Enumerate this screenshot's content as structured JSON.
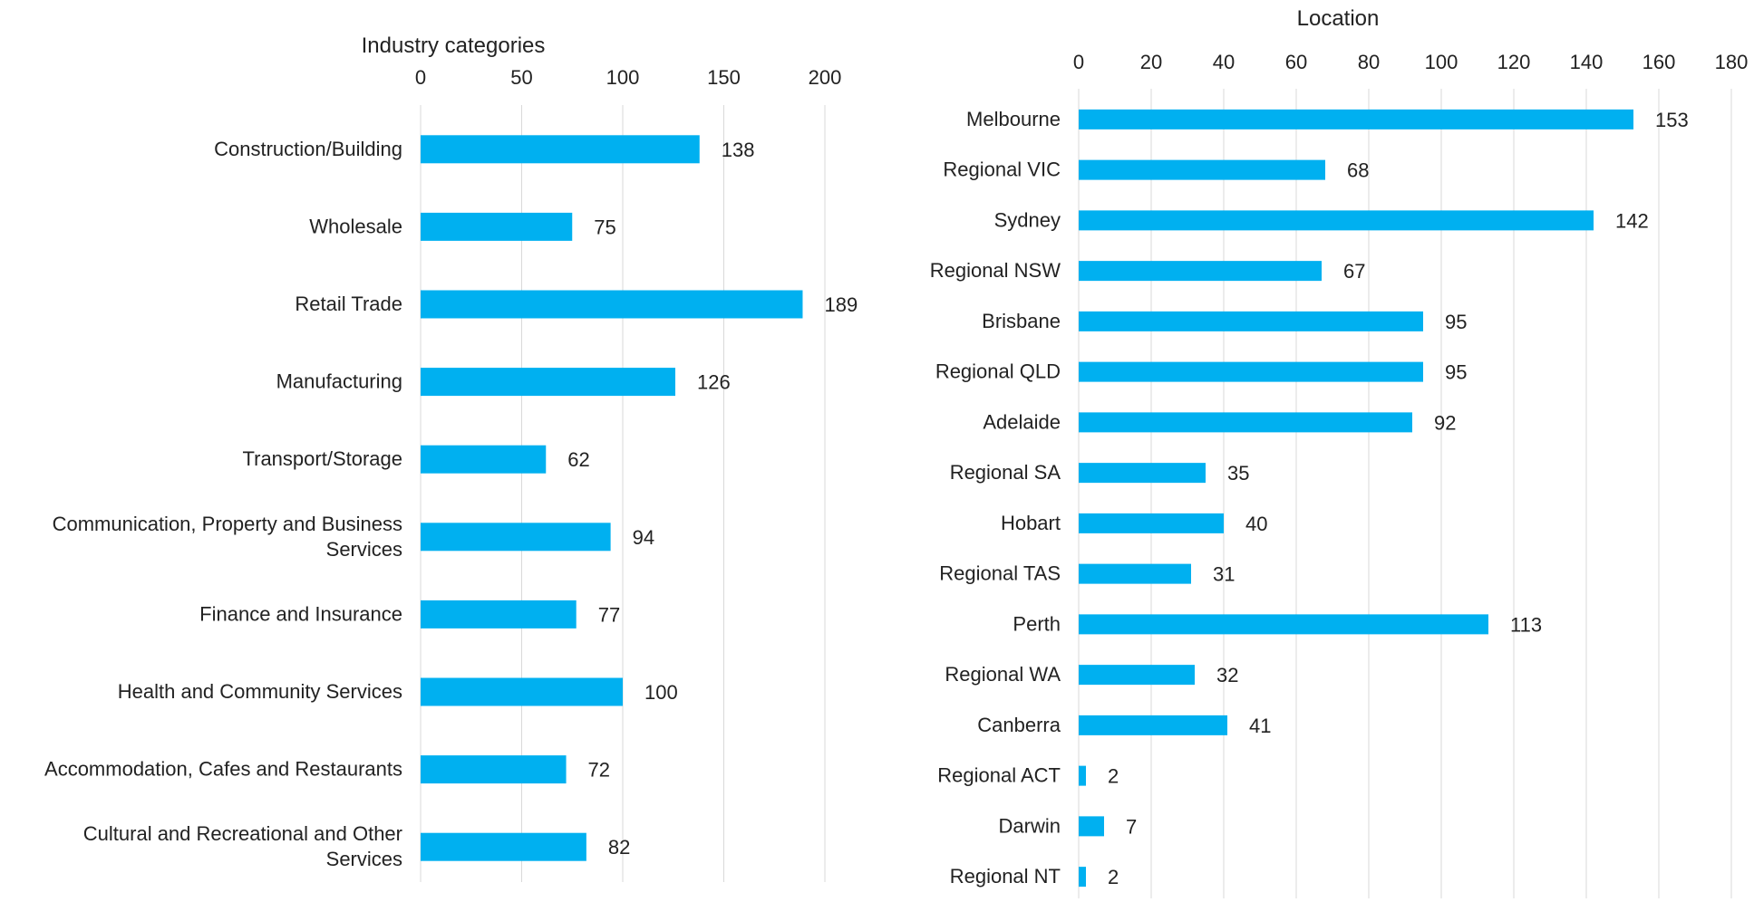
{
  "chart_data": [
    {
      "type": "bar",
      "orientation": "horizontal",
      "title": "Industry categories",
      "xlim": [
        0,
        200
      ],
      "xticks": [
        0,
        50,
        100,
        150,
        200
      ],
      "axis_position": "top",
      "grid": true,
      "bar_color": "#00b0f0",
      "categories": [
        "Construction/Building",
        "Wholesale",
        "Retail Trade",
        "Manufacturing",
        "Transport/Storage",
        "Communication, Property and Business Services",
        "Finance and Insurance",
        "Health and Community Services",
        "Accommodation, Cafes and Restaurants",
        "Cultural and Recreational and Other Services"
      ],
      "category_lines": [
        [
          "Construction/Building"
        ],
        [
          "Wholesale"
        ],
        [
          "Retail Trade"
        ],
        [
          "Manufacturing"
        ],
        [
          "Transport/Storage"
        ],
        [
          "Communication, Property and Business",
          "Services"
        ],
        [
          "Finance and Insurance"
        ],
        [
          "Health and Community Services"
        ],
        [
          "Accommodation, Cafes and Restaurants"
        ],
        [
          "Cultural and Recreational and Other",
          "Services"
        ]
      ],
      "values": [
        138,
        75,
        189,
        126,
        62,
        94,
        77,
        100,
        72,
        82
      ]
    },
    {
      "type": "bar",
      "orientation": "horizontal",
      "title": "Location",
      "xlim": [
        0,
        180
      ],
      "xticks": [
        0,
        20,
        40,
        60,
        80,
        100,
        120,
        140,
        160,
        180
      ],
      "axis_position": "top",
      "grid": true,
      "bar_color": "#00b0f0",
      "categories": [
        "Melbourne",
        "Regional VIC",
        "Sydney",
        "Regional NSW",
        "Brisbane",
        "Regional QLD",
        "Adelaide",
        "Regional SA",
        "Hobart",
        "Regional TAS",
        "Perth",
        "Regional WA",
        "Canberra",
        "Regional ACT",
        "Darwin",
        "Regional NT"
      ],
      "category_lines": [
        [
          "Melbourne"
        ],
        [
          "Regional VIC"
        ],
        [
          "Sydney"
        ],
        [
          "Regional NSW"
        ],
        [
          "Brisbane"
        ],
        [
          "Regional QLD"
        ],
        [
          "Adelaide"
        ],
        [
          "Regional SA"
        ],
        [
          "Hobart"
        ],
        [
          "Regional TAS"
        ],
        [
          "Perth"
        ],
        [
          "Regional WA"
        ],
        [
          "Canberra"
        ],
        [
          "Regional ACT"
        ],
        [
          "Darwin"
        ],
        [
          "Regional NT"
        ]
      ],
      "values": [
        153,
        68,
        142,
        67,
        95,
        95,
        92,
        35,
        40,
        31,
        113,
        32,
        41,
        2,
        7,
        2
      ]
    }
  ]
}
